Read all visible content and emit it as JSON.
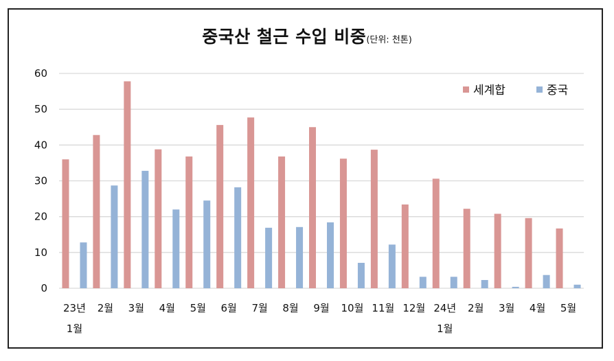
{
  "chart_data": {
    "type": "bar",
    "title": "중국산 철근 수입 비중",
    "subtitle": "(단위: 천톤)",
    "xlabel": "",
    "ylabel": "",
    "ylim": [
      0,
      60
    ],
    "yticks": [
      0,
      10,
      20,
      30,
      40,
      50,
      60
    ],
    "grid": true,
    "legend_position": "top-right",
    "categories": [
      [
        "23년",
        "1월"
      ],
      [
        "2월"
      ],
      [
        "3월"
      ],
      [
        "4월"
      ],
      [
        "5월"
      ],
      [
        "6월"
      ],
      [
        "7월"
      ],
      [
        "8월"
      ],
      [
        "9월"
      ],
      [
        "10월"
      ],
      [
        "11월"
      ],
      [
        "12월"
      ],
      [
        "24년",
        "1월"
      ],
      [
        "2월"
      ],
      [
        "3월"
      ],
      [
        "4월"
      ],
      [
        "5월"
      ]
    ],
    "series": [
      {
        "name": "세계합",
        "color": "#d99694",
        "values": [
          36,
          42.8,
          57.8,
          38.8,
          36.8,
          45.6,
          47.7,
          36.8,
          45,
          36.2,
          38.7,
          23.4,
          30.6,
          22.2,
          20.8,
          19.6,
          16.7
        ]
      },
      {
        "name": "중국",
        "color": "#95b3d7",
        "values": [
          12.8,
          28.7,
          32.8,
          22,
          24.5,
          28.2,
          16.9,
          17.1,
          18.4,
          7.1,
          12.2,
          3.2,
          3.2,
          2.3,
          0.4,
          3.7,
          1
        ]
      }
    ]
  }
}
